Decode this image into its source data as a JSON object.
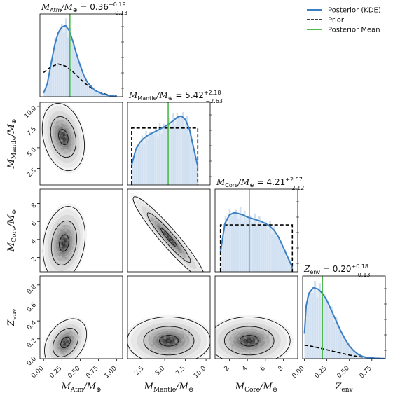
{
  "chart_data": {
    "type": "corner",
    "legend": {
      "placement": "top-right",
      "entries": [
        {
          "label": "Posterior (KDE)",
          "color": "#3b7fc4",
          "style": "solid"
        },
        {
          "label": "Prior",
          "color": "#000000",
          "style": "dashed"
        },
        {
          "label": "Posterior Mean",
          "color": "#4cbb4c",
          "style": "solid"
        }
      ]
    },
    "parameters": [
      {
        "key": "atm",
        "label_sym": "M",
        "label_sub": "Atm",
        "label_tail": "/M",
        "label_sub2": "⊕",
        "title": "M_Atm/M_⊕ = 0.36 +0.19 −0.13",
        "title_main": "= 0.36",
        "title_plus": "+0.19",
        "title_minus": "−0.13",
        "range": [
          -0.05,
          1.08
        ],
        "ticks": [
          0.0,
          0.25,
          0.5,
          0.75,
          1.0
        ],
        "tick_labels": [
          "0.00",
          "0.25",
          "0.50",
          "0.75",
          "1.00"
        ],
        "mean": 0.36,
        "posterior_kde": {
          "x": [
            0.0,
            0.05,
            0.1,
            0.15,
            0.2,
            0.25,
            0.3,
            0.35,
            0.4,
            0.45,
            0.5,
            0.55,
            0.6,
            0.7,
            0.8,
            0.9,
            1.0
          ],
          "y": [
            0.05,
            0.18,
            0.45,
            0.72,
            0.9,
            0.98,
            1.0,
            0.93,
            0.78,
            0.6,
            0.44,
            0.3,
            0.2,
            0.09,
            0.04,
            0.015,
            0.005
          ]
        },
        "prior": {
          "x": [
            0.0,
            0.1,
            0.2,
            0.3,
            0.4,
            0.5,
            0.6,
            0.7,
            0.8,
            0.9,
            1.0
          ],
          "y": [
            0.34,
            0.42,
            0.46,
            0.43,
            0.35,
            0.25,
            0.16,
            0.09,
            0.05,
            0.02,
            0.01
          ]
        }
      },
      {
        "key": "mantle",
        "label_sym": "M",
        "label_sub": "Mantle",
        "label_tail": "/M",
        "label_sub2": "⊕",
        "title": "M_Mantle/M_⊕ = 5.42 +2.18 −2.63",
        "title_main": "= 5.42",
        "title_plus": "+2.18",
        "title_minus": "−2.63",
        "range": [
          0.5,
          10.5
        ],
        "ticks": [
          2.5,
          5.0,
          7.5,
          10.0
        ],
        "tick_labels": [
          "2.5",
          "5.0",
          "7.5",
          "10.0"
        ],
        "mean": 5.42,
        "posterior_kde": {
          "x": [
            1.0,
            1.5,
            2.0,
            2.5,
            3.0,
            3.5,
            4.0,
            4.5,
            5.0,
            5.5,
            6.0,
            6.5,
            7.0,
            7.5,
            8.0,
            8.5,
            9.0
          ],
          "y": [
            0.28,
            0.5,
            0.6,
            0.66,
            0.7,
            0.73,
            0.76,
            0.79,
            0.82,
            0.86,
            0.9,
            0.95,
            0.97,
            0.92,
            0.78,
            0.52,
            0.26
          ]
        },
        "prior": {
          "x": [
            1.0,
            9.0
          ],
          "y": [
            0.8,
            0.8
          ]
        }
      },
      {
        "key": "core",
        "label_sym": "M",
        "label_sub": "Core",
        "label_tail": "/M",
        "label_sub2": "⊕",
        "title": "M_Core/M_⊕ = 4.21 +2.57 −2.12",
        "title_main": "= 4.21",
        "title_plus": "+2.57",
        "title_minus": "−2.12",
        "range": [
          0.4,
          9.6
        ],
        "ticks": [
          2,
          4,
          6,
          8
        ],
        "tick_labels": [
          "2",
          "4",
          "6",
          "8"
        ],
        "mean": 4.21,
        "posterior_kde": {
          "x": [
            1.0,
            1.5,
            2.0,
            2.5,
            3.0,
            3.5,
            4.0,
            4.5,
            5.0,
            5.5,
            6.0,
            6.5,
            7.0,
            7.5,
            8.0,
            8.5,
            9.0
          ],
          "y": [
            0.28,
            0.68,
            0.8,
            0.83,
            0.82,
            0.8,
            0.77,
            0.75,
            0.73,
            0.71,
            0.68,
            0.64,
            0.58,
            0.48,
            0.34,
            0.2,
            0.06
          ]
        },
        "prior": {
          "x": [
            1.0,
            9.0
          ],
          "y": [
            0.66,
            0.66
          ]
        }
      },
      {
        "key": "zenv",
        "label_sym": "Z",
        "label_sub": "env",
        "label_tail": "",
        "label_sub2": "",
        "title": "Z_env = 0.20 +0.18 −0.13",
        "title_main": "= 0.20",
        "title_plus": "+0.18",
        "title_minus": "−0.13",
        "range": [
          -0.02,
          0.9
        ],
        "ticks": [
          0.0,
          0.2,
          0.4,
          0.6,
          0.8
        ],
        "tick_labels": [
          "0.0",
          "0.2",
          "0.4",
          "0.6",
          "0.8"
        ],
        "axis_ticks": [
          0.0,
          0.25,
          0.5,
          0.75
        ],
        "axis_tick_labels": [
          "0.00",
          "0.25",
          "0.50",
          "0.75"
        ],
        "mean": 0.2,
        "posterior_kde": {
          "x": [
            0.0,
            0.02,
            0.05,
            0.1,
            0.15,
            0.2,
            0.25,
            0.3,
            0.35,
            0.4,
            0.45,
            0.5,
            0.55,
            0.6,
            0.65,
            0.7,
            0.8,
            0.9
          ],
          "y": [
            0.35,
            0.75,
            0.92,
            1.0,
            0.98,
            0.92,
            0.82,
            0.68,
            0.54,
            0.4,
            0.28,
            0.18,
            0.11,
            0.06,
            0.03,
            0.015,
            0.005,
            0.0
          ]
        },
        "prior": {
          "x": [
            0.0,
            0.1,
            0.2,
            0.3,
            0.4,
            0.5,
            0.6,
            0.7,
            0.8,
            0.9
          ],
          "y": [
            0.19,
            0.17,
            0.14,
            0.11,
            0.08,
            0.05,
            0.03,
            0.015,
            0.007,
            0.002
          ]
        }
      }
    ],
    "joint_blobs": [
      {
        "row": 1,
        "col": 0,
        "cx": 0.27,
        "cy": 6.3,
        "sx": 0.12,
        "sy": 1.7,
        "rho": -0.25
      },
      {
        "row": 2,
        "col": 0,
        "cx": 0.28,
        "cy": 3.6,
        "sx": 0.12,
        "sy": 1.7,
        "rho": 0.2
      },
      {
        "row": 2,
        "col": 1,
        "cx": 5.5,
        "cy": 4.2,
        "sx": 1.8,
        "sy": 1.9,
        "rho": -0.95
      },
      {
        "row": 3,
        "col": 0,
        "cx": 0.3,
        "cy": 0.16,
        "sx": 0.12,
        "sy": 0.11,
        "rho": 0.35
      },
      {
        "row": 3,
        "col": 1,
        "cx": 5.5,
        "cy": 0.18,
        "sx": 2.1,
        "sy": 0.11,
        "rho": 0.0
      },
      {
        "row": 3,
        "col": 2,
        "cx": 4.2,
        "cy": 0.18,
        "sx": 1.9,
        "sy": 0.11,
        "rho": 0.0
      }
    ]
  }
}
